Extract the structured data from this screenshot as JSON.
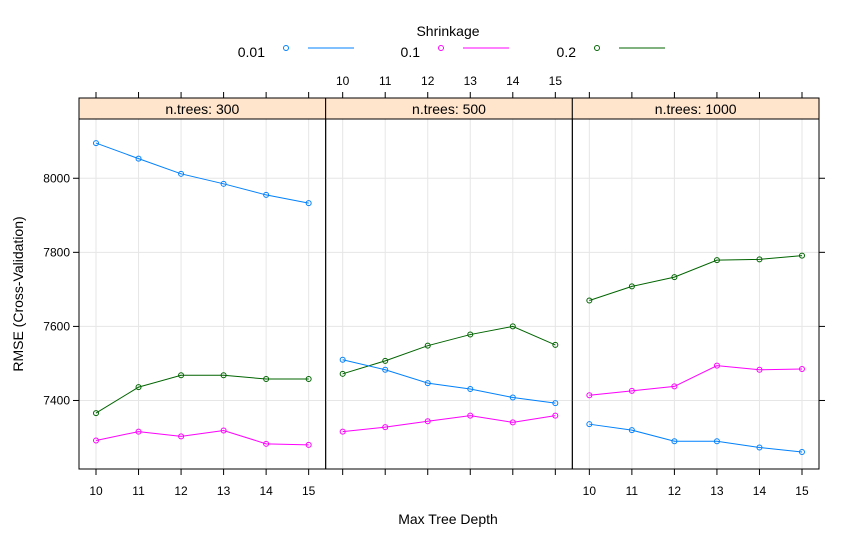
{
  "legend": {
    "title": "Shrinkage",
    "entries": [
      "0.01",
      "0.1",
      "0.2"
    ]
  },
  "colors": {
    "0.01": "#0080ff",
    "0.1": "#ff00ff",
    "0.2": "#006400",
    "strip_bg": "#ffe5cc",
    "grid": "#e6e6e6"
  },
  "chart_data": {
    "type": "line",
    "xlabel": "Max Tree Depth",
    "ylabel": "RMSE (Cross-Validation)",
    "x": [
      10,
      11,
      12,
      13,
      14,
      15
    ],
    "xlim": [
      9.6,
      15.4
    ],
    "ylim": [
      7215,
      8160
    ],
    "y_ticks": [
      7400,
      7600,
      7800,
      8000
    ],
    "grid": true,
    "legend_position": "top",
    "panels": [
      {
        "strip": "n.trees:  300",
        "series": [
          {
            "name": "0.01",
            "values": [
              8095,
              8053,
              8012,
              7985,
              7955,
              7933
            ]
          },
          {
            "name": "0.1",
            "values": [
              7292,
              7316,
              7303,
              7319,
              7283,
              7280
            ]
          },
          {
            "name": "0.2",
            "values": [
              7366,
              7436,
              7468,
              7468,
              7458,
              7458
            ]
          }
        ]
      },
      {
        "strip": "n.trees:  500",
        "series": [
          {
            "name": "0.01",
            "values": [
              7510,
              7483,
              7447,
              7431,
              7408,
              7393
            ]
          },
          {
            "name": "0.1",
            "values": [
              7316,
              7328,
              7344,
              7359,
              7341,
              7359
            ]
          },
          {
            "name": "0.2",
            "values": [
              7472,
              7507,
              7548,
              7578,
              7600,
              7550
            ]
          }
        ]
      },
      {
        "strip": "n.trees:  1000",
        "series": [
          {
            "name": "0.01",
            "values": [
              7336,
              7320,
              7290,
              7290,
              7273,
              7261
            ]
          },
          {
            "name": "0.1",
            "values": [
              7414,
              7426,
              7438,
              7494,
              7483,
              7485
            ]
          },
          {
            "name": "0.2",
            "values": [
              7670,
              7708,
              7733,
              7779,
              7781,
              7791
            ]
          }
        ]
      }
    ]
  }
}
